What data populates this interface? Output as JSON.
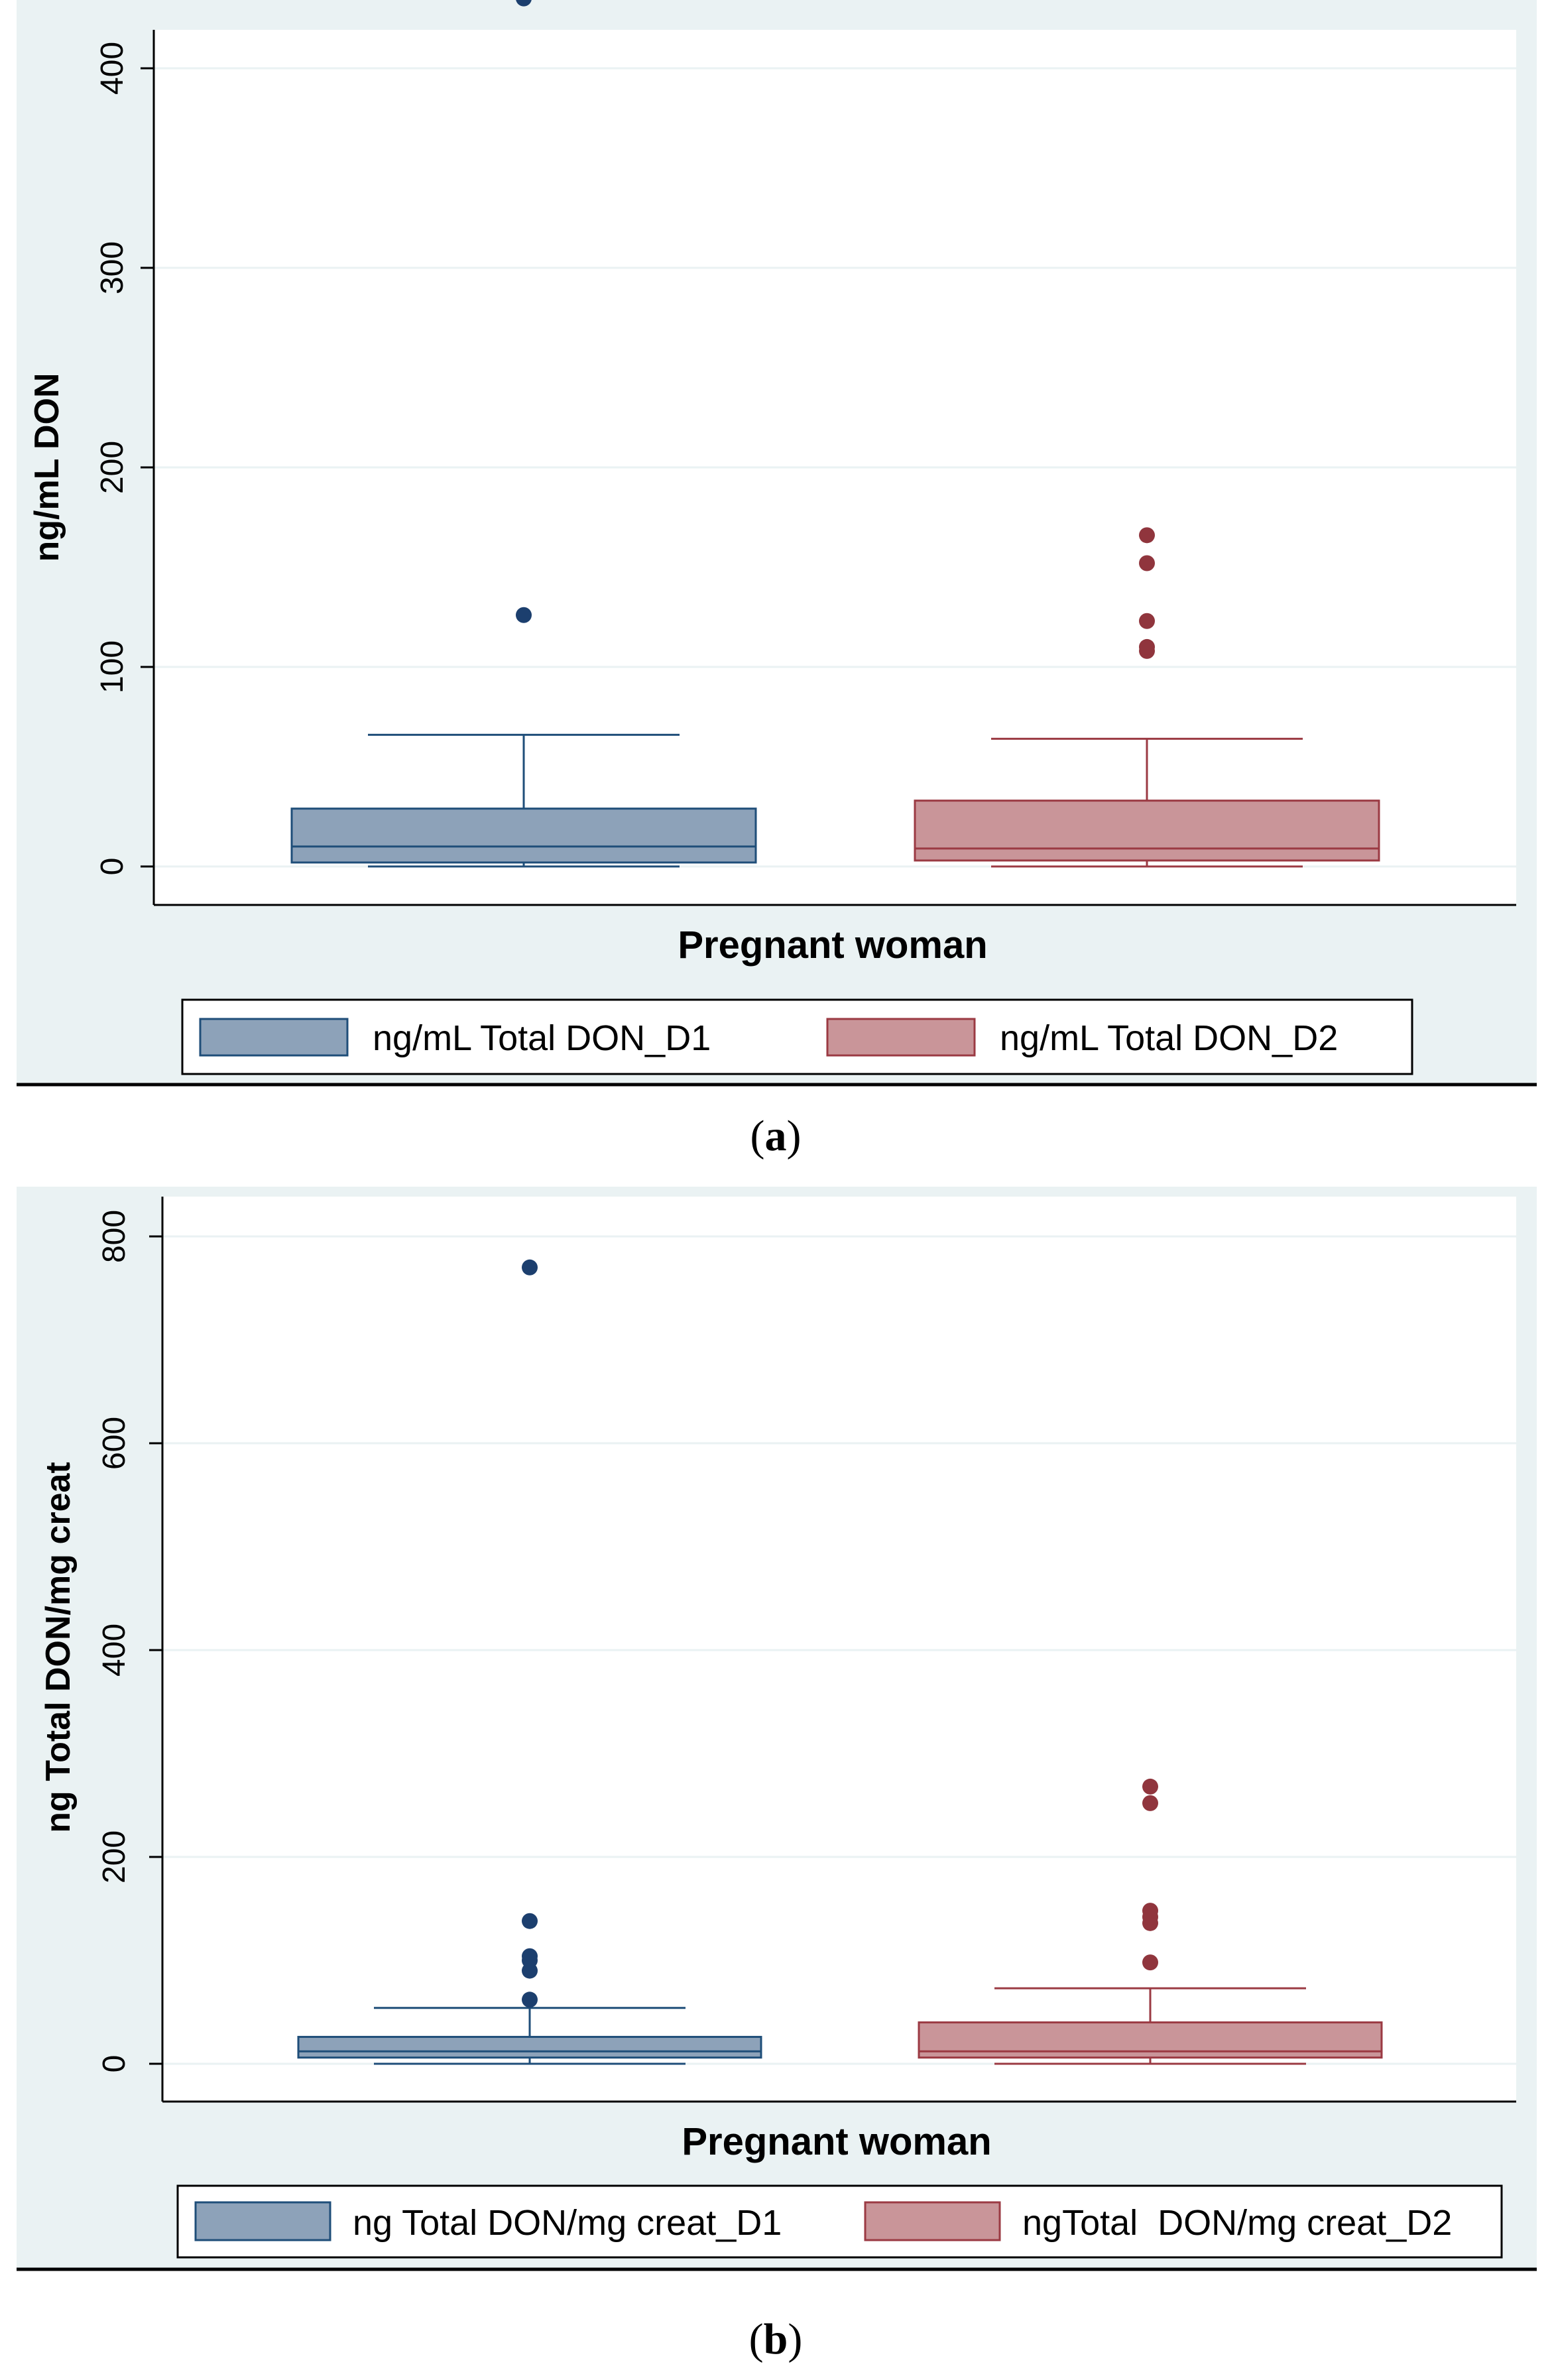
{
  "colors": {
    "d1_fill": "#8da2b9",
    "d1_stroke": "#1f4e79",
    "d1_point": "#1c3f6e",
    "d2_fill": "#c99599",
    "d2_stroke": "#9b3a43",
    "d2_point": "#90353d"
  },
  "chart_data": [
    {
      "type": "box",
      "panel_caption": "a",
      "xlabel": "Pregnant woman",
      "ylabel": "ng/mL DON",
      "ylim": [
        0,
        440
      ],
      "yticks": [
        0,
        100,
        200,
        300,
        400
      ],
      "grid": true,
      "series": [
        {
          "name": "ng/mL Total DON_D1",
          "min": 0,
          "q1": 2,
          "median": 10,
          "q3": 29,
          "whisker_high": 66,
          "outliers": [
            126,
            435
          ]
        },
        {
          "name": "ng/mL Total DON_D2",
          "min": 0,
          "q1": 3,
          "median": 9,
          "q3": 33,
          "whisker_high": 64,
          "outliers": [
            108,
            110,
            123,
            152,
            166
          ]
        }
      ]
    },
    {
      "type": "box",
      "panel_caption": "b",
      "xlabel": "Pregnant woman",
      "ylabel": "ng Total DON/mg creat",
      "ylim": [
        0,
        800
      ],
      "yticks": [
        0,
        200,
        400,
        600,
        800
      ],
      "grid": true,
      "series": [
        {
          "name": "ng Total DON/mg creat_D1",
          "min": 0,
          "q1": 6,
          "median": 12,
          "q3": 26,
          "whisker_high": 54,
          "outliers": [
            62,
            90,
            100,
            104,
            138,
            770
          ]
        },
        {
          "name": "ngTotal  DON/mg creat_D2",
          "min": 0,
          "q1": 6,
          "median": 12,
          "q3": 40,
          "whisker_high": 73,
          "outliers": [
            98,
            136,
            142,
            148,
            252,
            268
          ]
        }
      ]
    }
  ]
}
